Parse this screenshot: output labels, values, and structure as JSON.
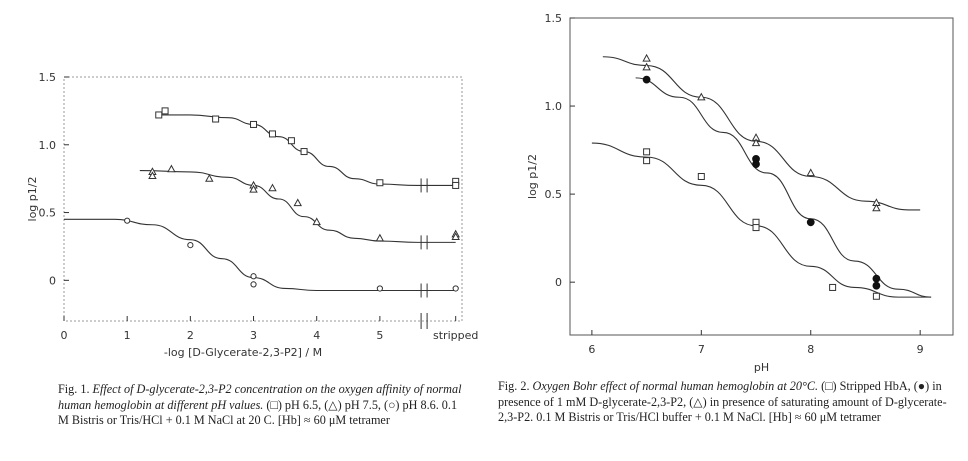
{
  "figure1": {
    "caption_label": "Fig. 1.",
    "caption_title": "Effect of D-glycerate-2,3-P2 concentration on the oxygen affinity of normal human hemoglobin at different pH values.",
    "caption_body": "(□) pH 6.5, (△) pH 7.5, (○) pH 8.6. 0.1 M Bistris or Tris/HCl + 0.1 M NaCl at 20 C. [Hb] ≈ 60 μM tetramer"
  },
  "figure2": {
    "caption_label": "Fig. 2.",
    "caption_title": "Oxygen Bohr effect of normal human hemoglobin at 20°C.",
    "caption_body": "(□) Stripped HbA, (●) in presence of 1 mM D-glycerate-2,3-P2, (△) in presence of saturating amount of D-glycerate-2,3-P2. 0.1 M Bistris or Tris/HCl buffer + 0.1 M NaCl. [Hb] ≈ 60 μM tetramer"
  },
  "chart_data": [
    {
      "type": "scatter",
      "title": "",
      "xlabel": "-log [D-Glycerate-2,3-P2] / M",
      "ylabel": "log p1/2",
      "xlim": [
        0,
        6.3
      ],
      "ylim": [
        -0.3,
        1.5
      ],
      "x_ticks": [
        "0",
        "1",
        "2",
        "3",
        "4",
        "5",
        "stripped"
      ],
      "y_ticks": [
        "0",
        "0.5",
        "1.0",
        "1.5"
      ],
      "grid": false,
      "series": [
        {
          "marker": "square",
          "points": [
            [
              1.5,
              1.22
            ],
            [
              1.6,
              1.25
            ],
            [
              2.4,
              1.19
            ],
            [
              3.0,
              1.15
            ],
            [
              3.3,
              1.08
            ],
            [
              3.6,
              1.03
            ],
            [
              3.8,
              0.95
            ],
            [
              5.0,
              0.72
            ],
            [
              6.2,
              0.73
            ],
            [
              6.2,
              0.7
            ]
          ],
          "fit": [
            [
              1.45,
              1.22
            ],
            [
              2.0,
              1.22
            ],
            [
              2.6,
              1.2
            ],
            [
              3.0,
              1.15
            ],
            [
              3.4,
              1.06
            ],
            [
              3.8,
              0.95
            ],
            [
              4.2,
              0.84
            ],
            [
              4.6,
              0.75
            ],
            [
              5.0,
              0.71
            ],
            [
              5.6,
              0.7
            ],
            [
              6.2,
              0.7
            ]
          ]
        },
        {
          "marker": "triangle",
          "points": [
            [
              1.4,
              0.8
            ],
            [
              1.4,
              0.77
            ],
            [
              1.7,
              0.82
            ],
            [
              2.3,
              0.75
            ],
            [
              3.0,
              0.7
            ],
            [
              3.0,
              0.67
            ],
            [
              3.3,
              0.68
            ],
            [
              3.7,
              0.57
            ],
            [
              4.0,
              0.43
            ],
            [
              5.0,
              0.31
            ],
            [
              6.2,
              0.34
            ],
            [
              6.2,
              0.32
            ]
          ],
          "fit": [
            [
              1.2,
              0.81
            ],
            [
              2.0,
              0.8
            ],
            [
              2.6,
              0.76
            ],
            [
              3.0,
              0.7
            ],
            [
              3.4,
              0.6
            ],
            [
              3.8,
              0.47
            ],
            [
              4.2,
              0.37
            ],
            [
              4.6,
              0.31
            ],
            [
              5.0,
              0.29
            ],
            [
              5.6,
              0.28
            ],
            [
              6.2,
              0.28
            ]
          ]
        },
        {
          "marker": "circle",
          "points": [
            [
              1.0,
              0.44
            ],
            [
              2.0,
              0.26
            ],
            [
              3.0,
              0.03
            ],
            [
              3.0,
              -0.03
            ],
            [
              5.0,
              -0.06
            ],
            [
              6.2,
              -0.06
            ]
          ],
          "fit": [
            [
              0,
              0.45
            ],
            [
              0.8,
              0.45
            ],
            [
              1.4,
              0.41
            ],
            [
              2.0,
              0.3
            ],
            [
              2.5,
              0.16
            ],
            [
              3.0,
              0.02
            ],
            [
              3.5,
              -0.06
            ],
            [
              4.0,
              -0.075
            ],
            [
              5.0,
              -0.075
            ],
            [
              5.6,
              -0.075
            ],
            [
              6.2,
              -0.075
            ]
          ]
        }
      ]
    },
    {
      "type": "scatter",
      "title": "",
      "xlabel": "pH",
      "ylabel": "log p1/2",
      "xlim": [
        5.8,
        9.3
      ],
      "ylim": [
        -0.3,
        1.5
      ],
      "x_ticks": [
        "6",
        "7",
        "8",
        "9"
      ],
      "y_ticks": [
        "0",
        "0.5",
        "1.0",
        "1.5"
      ],
      "grid": false,
      "series": [
        {
          "marker": "square",
          "points": [
            [
              6.5,
              0.74
            ],
            [
              6.5,
              0.69
            ],
            [
              7.0,
              0.6
            ],
            [
              7.5,
              0.34
            ],
            [
              7.5,
              0.31
            ],
            [
              8.2,
              -0.03
            ],
            [
              8.6,
              -0.08
            ]
          ],
          "fit": [
            [
              6.0,
              0.79
            ],
            [
              6.5,
              0.71
            ],
            [
              7.0,
              0.55
            ],
            [
              7.5,
              0.32
            ],
            [
              8.0,
              0.09
            ],
            [
              8.4,
              -0.03
            ],
            [
              8.8,
              -0.085
            ],
            [
              9.1,
              -0.085
            ]
          ]
        },
        {
          "marker": "dot",
          "points": [
            [
              6.5,
              1.15
            ],
            [
              7.5,
              0.7
            ],
            [
              7.5,
              0.67
            ],
            [
              8.0,
              0.34
            ],
            [
              8.6,
              0.02
            ],
            [
              8.6,
              -0.02
            ]
          ],
          "fit": [
            [
              6.4,
              1.16
            ],
            [
              6.8,
              1.05
            ],
            [
              7.2,
              0.85
            ],
            [
              7.6,
              0.62
            ],
            [
              8.0,
              0.36
            ],
            [
              8.4,
              0.12
            ],
            [
              8.8,
              -0.04
            ],
            [
              9.1,
              -0.085
            ]
          ]
        },
        {
          "marker": "triangle",
          "points": [
            [
              6.5,
              1.27
            ],
            [
              6.5,
              1.22
            ],
            [
              7.0,
              1.05
            ],
            [
              7.5,
              0.82
            ],
            [
              7.5,
              0.79
            ],
            [
              8.0,
              0.62
            ],
            [
              8.6,
              0.45
            ],
            [
              8.6,
              0.42
            ]
          ],
          "fit": [
            [
              6.1,
              1.28
            ],
            [
              6.5,
              1.23
            ],
            [
              7.0,
              1.05
            ],
            [
              7.5,
              0.8
            ],
            [
              8.0,
              0.6
            ],
            [
              8.5,
              0.46
            ],
            [
              8.9,
              0.41
            ],
            [
              9.0,
              0.41
            ]
          ]
        }
      ]
    }
  ]
}
